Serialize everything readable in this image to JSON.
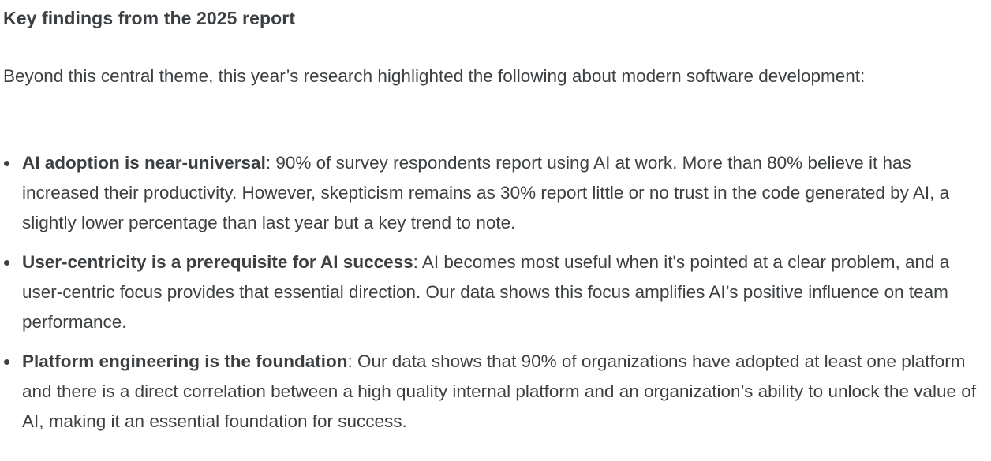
{
  "heading": "Key findings from the 2025 report",
  "intro": "Beyond this central theme, this year’s research highlighted the following about modern software development:",
  "findings": [
    {
      "title": "AI adoption is near-universal",
      "text": ": 90% of survey respondents report using AI at work. More than 80% believe it has increased their productivity. However, skepticism remains as 30% report little or no trust in the code generated by AI, a slightly lower percentage than last year but a key trend to note."
    },
    {
      "title": "User-centricity is a prerequisite for AI success",
      "text": ": AI becomes most useful when it's pointed at a clear problem, and a user-centric focus provides that essential direction. Our data shows this focus amplifies AI’s positive influence on team performance."
    },
    {
      "title": "Platform engineering is the foundation",
      "text": ": Our data shows that 90% of organizations have adopted at least one platform and there is a direct correlation between a high quality internal platform and an organization’s ability to unlock the value of AI, making it an essential foundation for success."
    }
  ]
}
